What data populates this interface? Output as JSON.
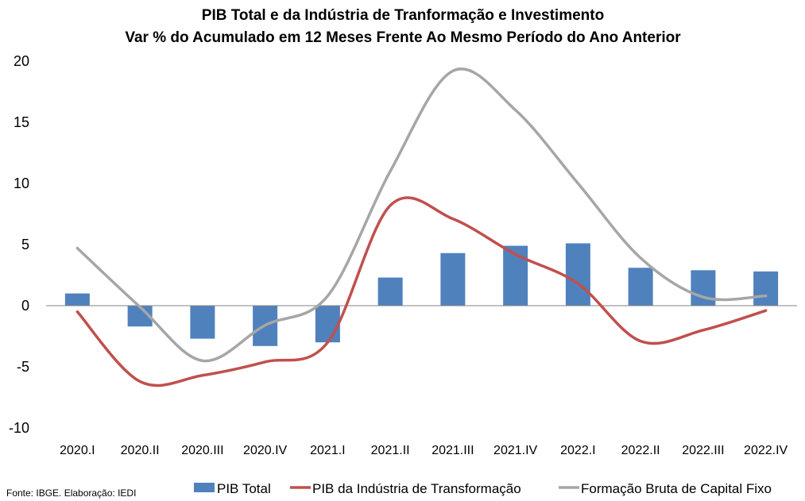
{
  "chart_data": {
    "type": "bar",
    "title": "PIB Total e da Indústria de Tranformação e Investimento",
    "subtitle": "Var % do Acumulado em 12 Meses Frente Ao Mesmo Período do Ano Anterior",
    "xlabel": "",
    "ylabel": "",
    "ylim": [
      -10,
      20
    ],
    "yticks": [
      "20",
      "15",
      "10",
      "5",
      "0",
      "-5",
      "-10"
    ],
    "ytick_values": [
      20,
      15,
      10,
      5,
      0,
      -5,
      -10
    ],
    "categories": [
      "2020.I",
      "2020.II",
      "2020.III",
      "2020.IV",
      "2021.I",
      "2021.II",
      "2021.III",
      "2021.IV",
      "2022.I",
      "2022.II",
      "2022.III",
      "2022.IV"
    ],
    "series": [
      {
        "name": "PIB Total",
        "type": "bar",
        "color": "#4f81bd",
        "values": [
          1.0,
          -1.7,
          -2.7,
          -3.3,
          -3.0,
          2.3,
          4.3,
          4.9,
          5.1,
          3.1,
          2.9,
          2.8
        ]
      },
      {
        "name": "PIB da Indústria de Transformação",
        "type": "line",
        "color": "#c0504d",
        "values": [
          -0.5,
          -6.2,
          -5.7,
          -4.6,
          -3.0,
          8.2,
          7.1,
          4.2,
          1.8,
          -2.9,
          -2.0,
          -0.4
        ]
      },
      {
        "name": "Formação Bruta de Capital Fixo",
        "type": "line",
        "color": "#a6a6a6",
        "values": [
          4.7,
          -0.1,
          -4.5,
          -1.6,
          0.8,
          11.0,
          19.2,
          16.0,
          10.0,
          3.9,
          0.7,
          0.8
        ]
      }
    ],
    "grid": false,
    "legend_position": "bottom-right"
  },
  "source_note": "Fonte: IBGE. Elaboração: IEDI"
}
